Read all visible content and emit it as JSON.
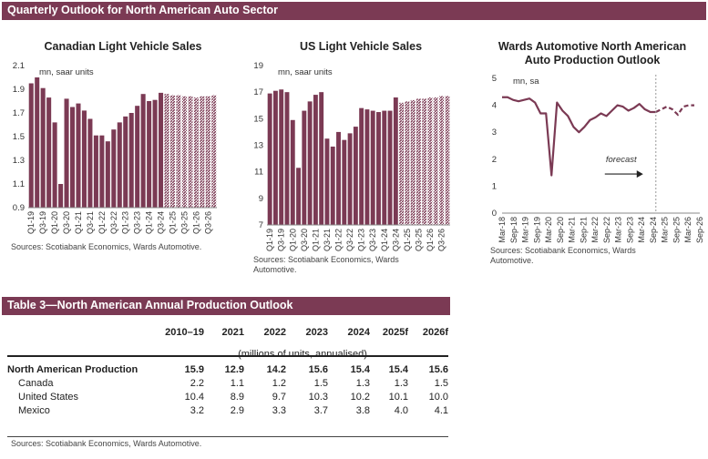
{
  "header": {
    "title": "Quarterly Outlook for North American Auto Sector"
  },
  "chart_data": [
    {
      "type": "bar",
      "title": "Canadian Light Vehicle Sales",
      "unit_label": "mn, saar units",
      "ylim": [
        0.9,
        2.1
      ],
      "yticks": [
        "0.9",
        "1.1",
        "1.3",
        "1.5",
        "1.7",
        "1.9",
        "2.1"
      ],
      "ytick_values": [
        0.9,
        1.1,
        1.3,
        1.5,
        1.7,
        1.9,
        2.1
      ],
      "x_tick_labels": [
        "Q1-19",
        "Q3-19",
        "Q1-20",
        "Q3-20",
        "Q1-21",
        "Q3-21",
        "Q1-22",
        "Q3-22",
        "Q1-23",
        "Q3-23",
        "Q1-24",
        "Q3-24",
        "Q1-25",
        "Q3-25",
        "Q1-26",
        "Q3-26"
      ],
      "values": [
        1.95,
        2.0,
        1.91,
        1.83,
        1.62,
        1.1,
        1.82,
        1.75,
        1.78,
        1.72,
        1.65,
        1.51,
        1.51,
        1.46,
        1.56,
        1.62,
        1.67,
        1.7,
        1.76,
        1.86,
        1.8,
        1.81,
        1.87,
        1.86,
        1.85,
        1.85,
        1.84,
        1.84,
        1.83,
        1.84,
        1.84,
        1.85
      ],
      "forecast_start_index": 23,
      "colors": {
        "actual": "#7b3a54",
        "forecast": "#7b3a54"
      },
      "source": "Sources: Scotiabank Economics, Wards Automotive."
    },
    {
      "type": "bar",
      "title": "US Light Vehicle Sales",
      "unit_label": "mn, saar units",
      "ylim": [
        7,
        19
      ],
      "yticks": [
        "7",
        "9",
        "11",
        "13",
        "15",
        "17",
        "19"
      ],
      "ytick_values": [
        7,
        9,
        11,
        13,
        15,
        17,
        19
      ],
      "x_tick_labels": [
        "Q1-19",
        "Q3-19",
        "Q1-20",
        "Q3-20",
        "Q1-21",
        "Q3-21",
        "Q1-22",
        "Q3-22",
        "Q1-23",
        "Q3-23",
        "Q1-24",
        "Q3-24",
        "Q1-25",
        "Q3-25",
        "Q1-26",
        "Q3-26"
      ],
      "values": [
        16.9,
        17.1,
        17.2,
        17.0,
        14.9,
        11.3,
        15.6,
        16.3,
        16.8,
        17.0,
        13.5,
        12.9,
        14.0,
        13.4,
        13.9,
        14.4,
        15.8,
        15.7,
        15.6,
        15.5,
        15.6,
        15.6,
        16.6,
        16.2,
        16.3,
        16.4,
        16.5,
        16.5,
        16.6,
        16.6,
        16.7,
        16.7
      ],
      "forecast_start_index": 23,
      "colors": {
        "actual": "#7b3a54",
        "forecast": "#7b3a54"
      },
      "source_lines": [
        "Sources: Scotiabank Economics, Wards",
        "Automotive."
      ]
    },
    {
      "type": "line",
      "title_lines": [
        "Wards Automotive North American",
        "Auto Production Outlook"
      ],
      "unit_label": "mn, sa",
      "ylim": [
        0,
        5
      ],
      "yticks": [
        "0",
        "1",
        "2",
        "3",
        "4",
        "5"
      ],
      "ytick_values": [
        0,
        1,
        2,
        3,
        4,
        5
      ],
      "x_tick_labels": [
        "Mar-18",
        "Sep-18",
        "Mar-19",
        "Sep-19",
        "Mar-20",
        "Sep-20",
        "Mar-21",
        "Sep-21",
        "Mar-22",
        "Sep-22",
        "Mar-23",
        "Sep-23",
        "Mar-24",
        "Sep-24",
        "Mar-25",
        "Sep-25",
        "Mar-26",
        "Sep-26"
      ],
      "actual_values": [
        4.3,
        4.3,
        4.2,
        4.15,
        4.2,
        4.25,
        4.1,
        3.7,
        3.7,
        1.4,
        4.1,
        3.8,
        3.6,
        3.2,
        3.0,
        3.2,
        3.45,
        3.55,
        3.7,
        3.6,
        3.8,
        4.0,
        3.95,
        3.8,
        3.9,
        4.05,
        3.85,
        3.75,
        3.75
      ],
      "forecast_values": [
        3.75,
        3.85,
        3.95,
        3.85,
        3.65,
        3.95,
        4.0,
        4.0
      ],
      "forecast_label": "forecast",
      "colors": {
        "line": "#7b3a54",
        "divider": "#999999"
      },
      "source_lines": [
        "Sources: Scotiabank Economics, Wards",
        "Automotive."
      ]
    }
  ],
  "table": {
    "title": "Table 3—North American Annual Production Outlook",
    "columns": [
      "2010–19",
      "2021",
      "2022",
      "2023",
      "2024",
      "2025f",
      "2026f"
    ],
    "units": "(millions of units, annualised)",
    "rows": [
      {
        "label": "North American Production",
        "values": [
          "15.9",
          "12.9",
          "14.2",
          "15.6",
          "15.4",
          "15.4",
          "15.6"
        ]
      },
      {
        "label": "Canada",
        "values": [
          "2.2",
          "1.1",
          "1.2",
          "1.5",
          "1.3",
          "1.3",
          "1.5"
        ]
      },
      {
        "label": "United States",
        "values": [
          "10.4",
          "8.9",
          "9.7",
          "10.3",
          "10.2",
          "10.1",
          "10.0"
        ]
      },
      {
        "label": "Mexico",
        "values": [
          "3.2",
          "2.9",
          "3.3",
          "3.7",
          "3.8",
          "4.0",
          "4.1"
        ]
      }
    ],
    "source": "Sources: Scotiabank Economics, Wards Automotive."
  }
}
